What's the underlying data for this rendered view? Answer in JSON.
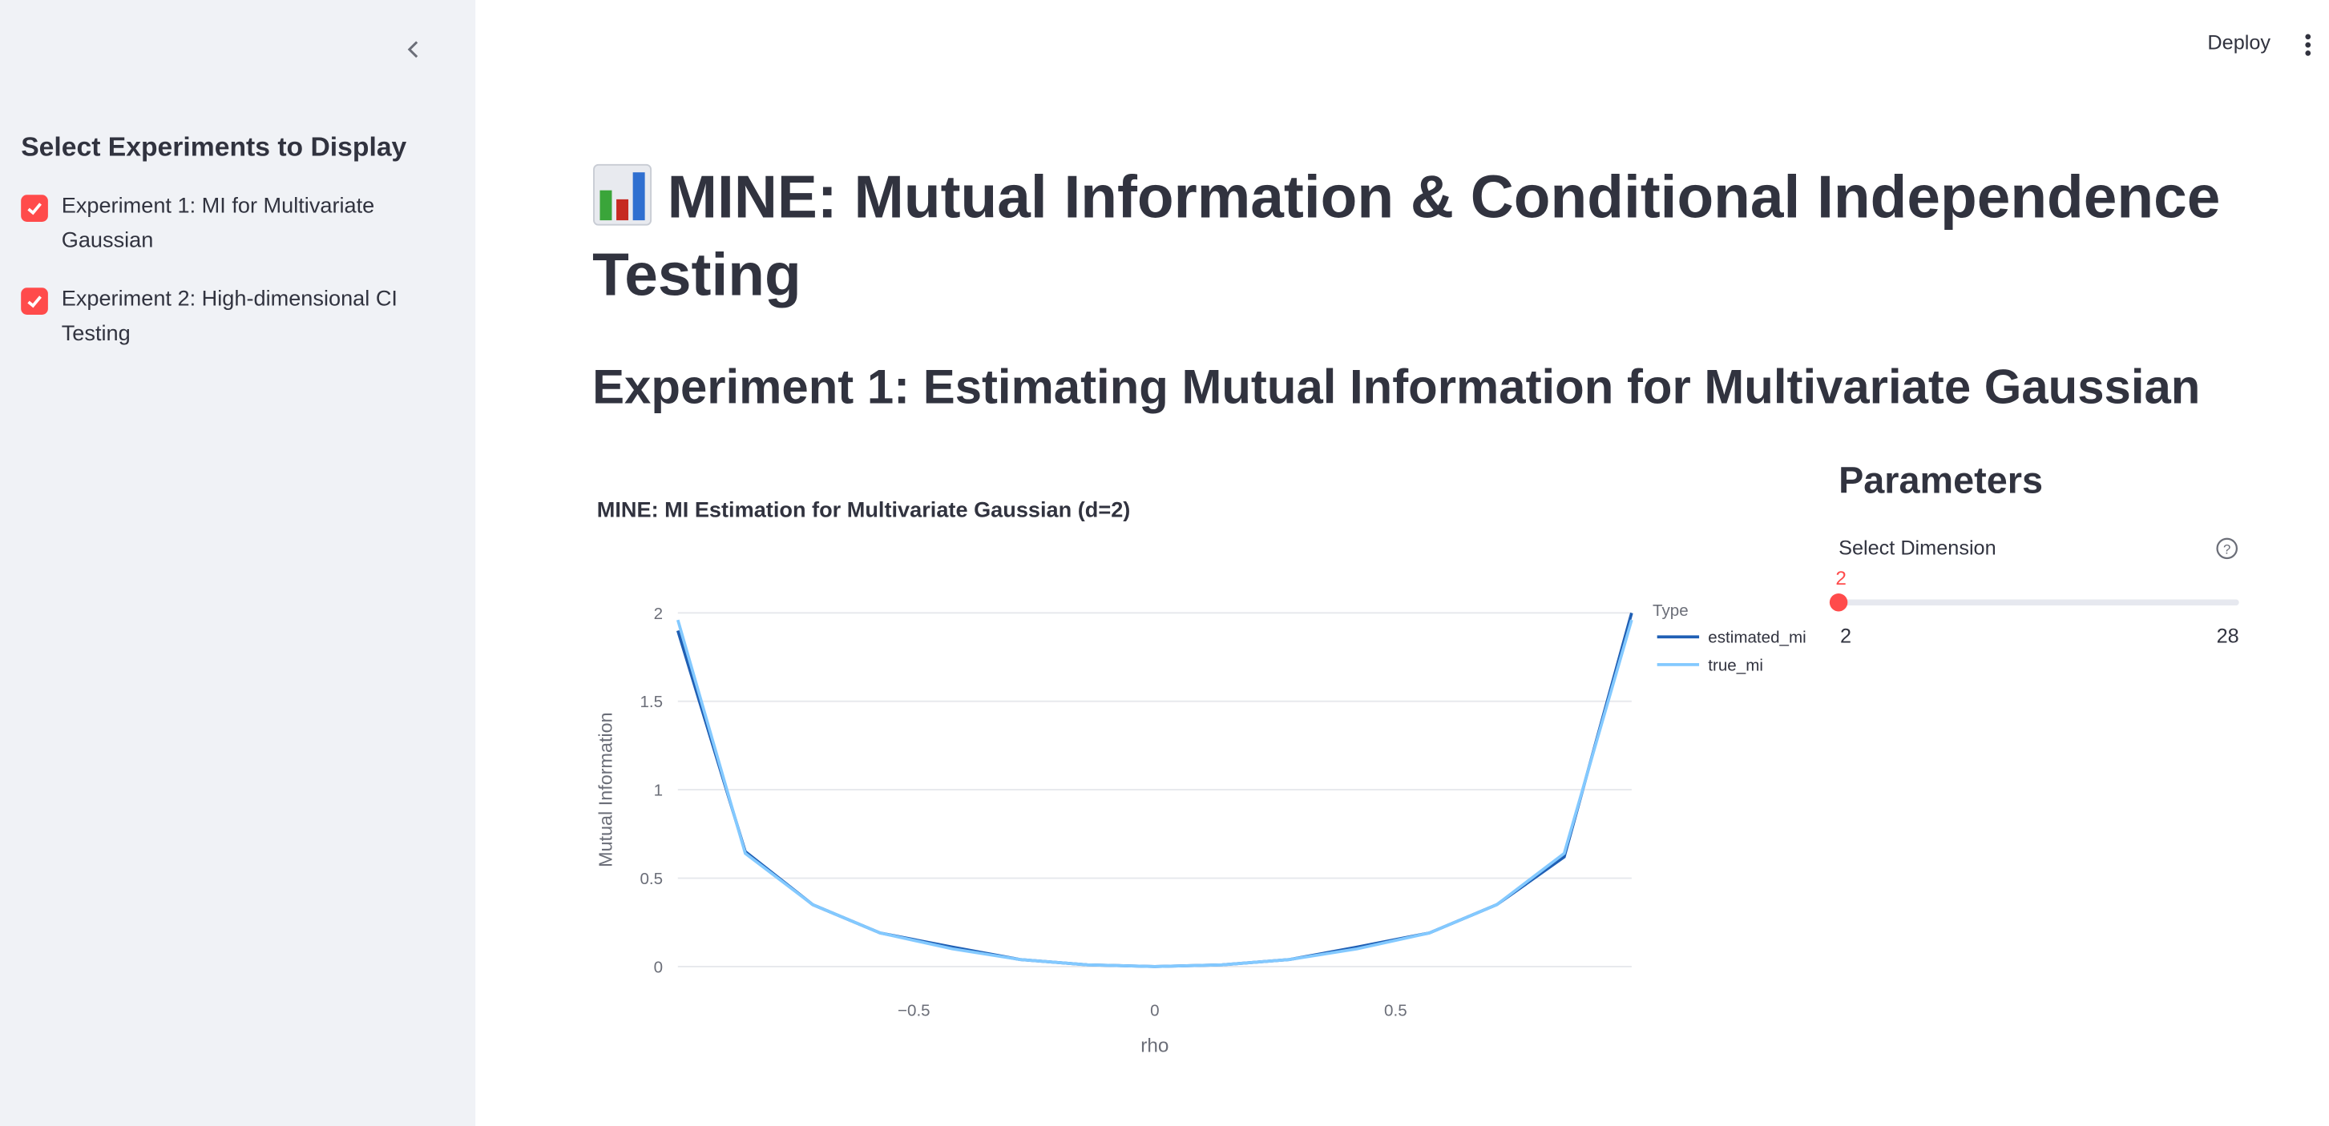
{
  "sidebar": {
    "title": "Select Experiments to Display",
    "options": [
      {
        "label": "Experiment 1: MI for Multivariate Gaussian",
        "checked": true
      },
      {
        "label": "Experiment 2: High-dimensional CI Testing",
        "checked": true
      }
    ]
  },
  "header": {
    "deploy": "Deploy"
  },
  "main": {
    "title": "MINE: Mutual Information & Conditional Independence Testing",
    "section": "Experiment 1: Estimating Mutual Information for Multivariate Gaussian"
  },
  "parameters": {
    "heading": "Parameters",
    "slider": {
      "label": "Select Dimension",
      "value": 2,
      "min": 2,
      "max": 28
    }
  },
  "chart_data": {
    "type": "line",
    "title": "MINE: MI Estimation for Multivariate Gaussian (d=2)",
    "x_label": "rho",
    "y_label": "Mutual Information",
    "legend_title": "Type",
    "x": [
      -0.99,
      -0.85,
      -0.71,
      -0.57,
      -0.42,
      -0.28,
      -0.14,
      0,
      0.14,
      0.28,
      0.42,
      0.57,
      0.71,
      0.85,
      0.99
    ],
    "series": [
      {
        "name": "estimated_mi",
        "color": "#1f5fb4",
        "values": [
          1.9,
          0.65,
          0.35,
          0.19,
          0.11,
          0.04,
          0.01,
          0.0,
          0.01,
          0.04,
          0.11,
          0.19,
          0.35,
          0.62,
          2.0
        ]
      },
      {
        "name": "true_mi",
        "color": "#83c9ff",
        "values": [
          1.96,
          0.64,
          0.35,
          0.19,
          0.1,
          0.04,
          0.01,
          0.0,
          0.01,
          0.04,
          0.1,
          0.19,
          0.35,
          0.64,
          1.96
        ]
      }
    ],
    "xlim": [
      -0.99,
      0.99
    ],
    "ylim": [
      0,
      2
    ],
    "xticks": [
      {
        "value": -0.5,
        "label": "−0.5"
      },
      0,
      0.5
    ],
    "yticks": [
      0,
      0.5,
      1,
      1.5,
      2
    ],
    "grid": true
  }
}
